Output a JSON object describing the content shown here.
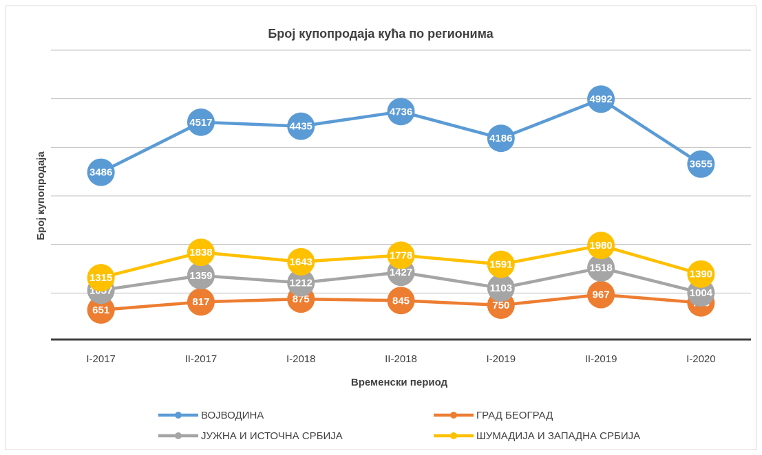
{
  "chart_data": {
    "type": "line",
    "title": "Број купопродаја кућа по регионима",
    "x_label": "Временски период",
    "y_label": "Број купопродаја",
    "categories": [
      "I-2017",
      "II-2017",
      "I-2018",
      "II-2018",
      "I-2019",
      "II-2019",
      "I-2020"
    ],
    "series": [
      {
        "name": "ВОЈВОДИНА",
        "color": "#5b9bd5",
        "values": [
          3486,
          4517,
          4435,
          4736,
          4186,
          4992,
          3655
        ]
      },
      {
        "name": "ГРАД БЕОГРАД",
        "color": "#ed7d31",
        "values": [
          651,
          817,
          875,
          845,
          750,
          967,
          798
        ]
      },
      {
        "name": "ЈУЖНА И ИСТОЧНА СРБИЈА",
        "color": "#a5a5a5",
        "values": [
          1057,
          1359,
          1212,
          1427,
          1103,
          1518,
          1004
        ]
      },
      {
        "name": "ШУМАДИЈА И ЗАПАДНА СРБИЈА",
        "color": "#ffc000",
        "values": [
          1315,
          1838,
          1643,
          1778,
          1591,
          1980,
          1390
        ]
      }
    ],
    "ylim": [
      0,
      6000
    ],
    "yticks": [
      1000,
      2000,
      3000,
      4000,
      5000,
      6000
    ],
    "grid": true,
    "legend": "bottom"
  }
}
